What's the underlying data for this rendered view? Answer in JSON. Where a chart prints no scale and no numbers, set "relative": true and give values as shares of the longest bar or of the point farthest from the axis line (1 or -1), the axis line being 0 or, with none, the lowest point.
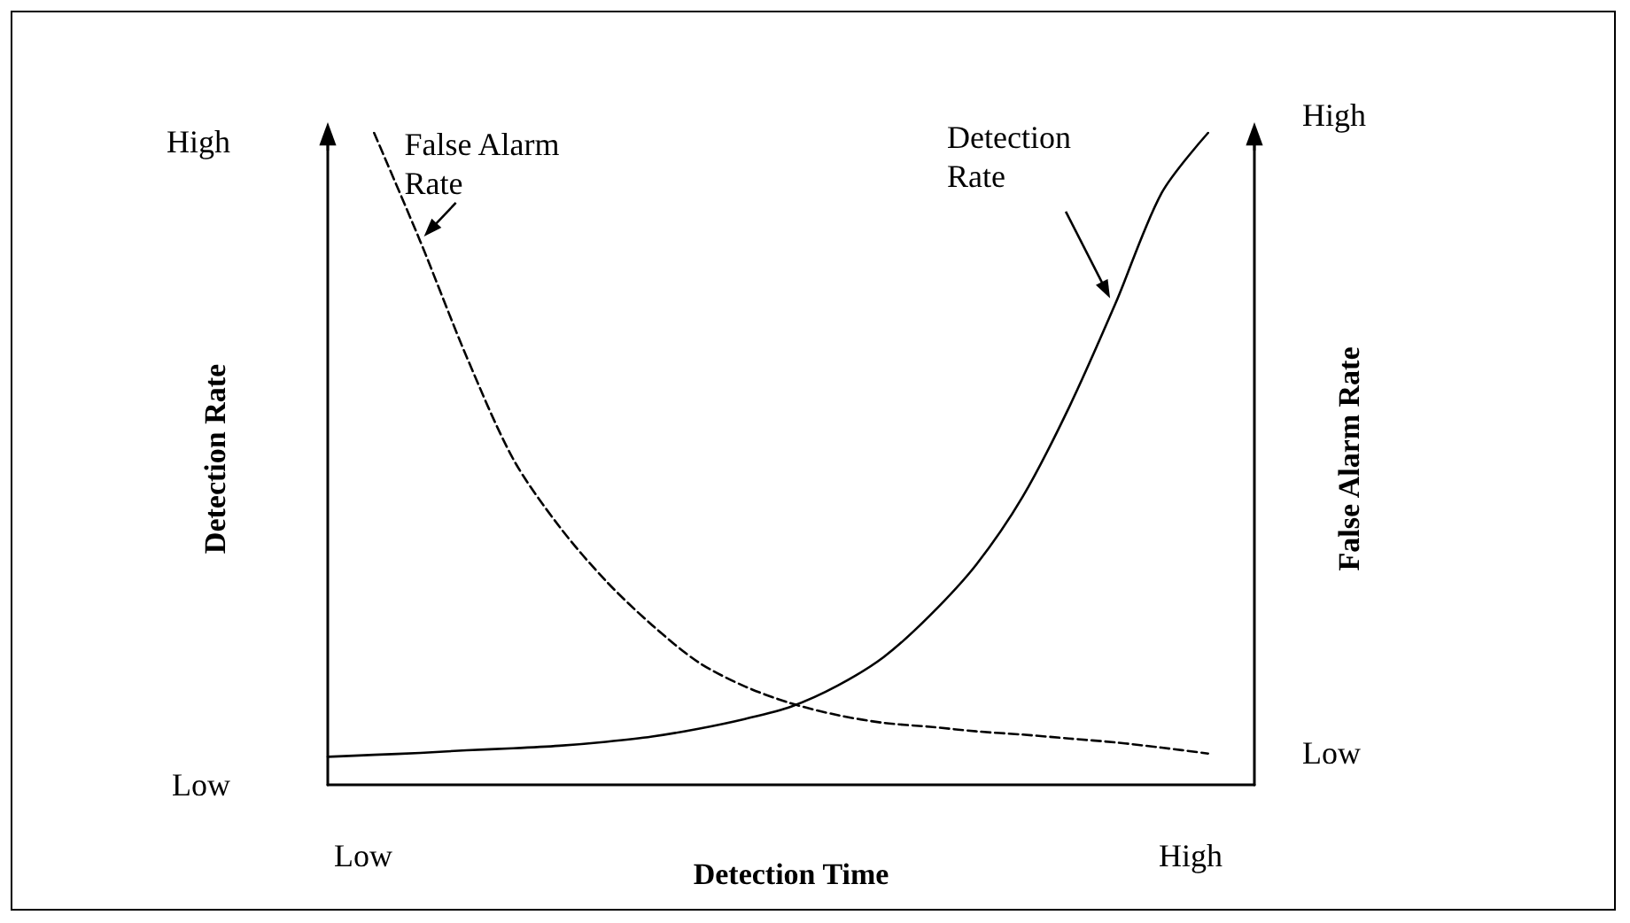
{
  "chart_data": {
    "type": "line",
    "relative": true,
    "xlabel": "Detection Time",
    "ylabel": "Detection Rate",
    "y2label": "False Alarm Rate",
    "categories": [
      null,
      null,
      null,
      null,
      null,
      null,
      null,
      null,
      null,
      null,
      null,
      null,
      null,
      null,
      null,
      null,
      null,
      null,
      null,
      null,
      null
    ],
    "annotations": [
      "High",
      "Low",
      "Low",
      "High",
      "High",
      "Low"
    ],
    "marker": "none",
    "series": [
      {
        "name": "Detection Rate",
        "color": "#000000",
        "line_style": "solid",
        "values": [
          0.043,
          0.046,
          0.049,
          0.053,
          0.056,
          0.06,
          0.066,
          0.074,
          0.086,
          0.101,
          0.12,
          0.152,
          0.196,
          0.26,
          0.338,
          0.442,
          0.579,
          0.738,
          0.908,
          1.0,
          null
        ]
      },
      {
        "name": "False Alarm Rate",
        "color": "#000000",
        "line_style": "dashed",
        "values": [
          null,
          1.0,
          0.833,
          0.656,
          0.5,
          0.396,
          0.313,
          0.245,
          0.188,
          0.151,
          0.125,
          0.107,
          0.095,
          0.089,
          0.082,
          0.077,
          0.071,
          0.065,
          0.057,
          0.048,
          null
        ]
      }
    ]
  }
}
